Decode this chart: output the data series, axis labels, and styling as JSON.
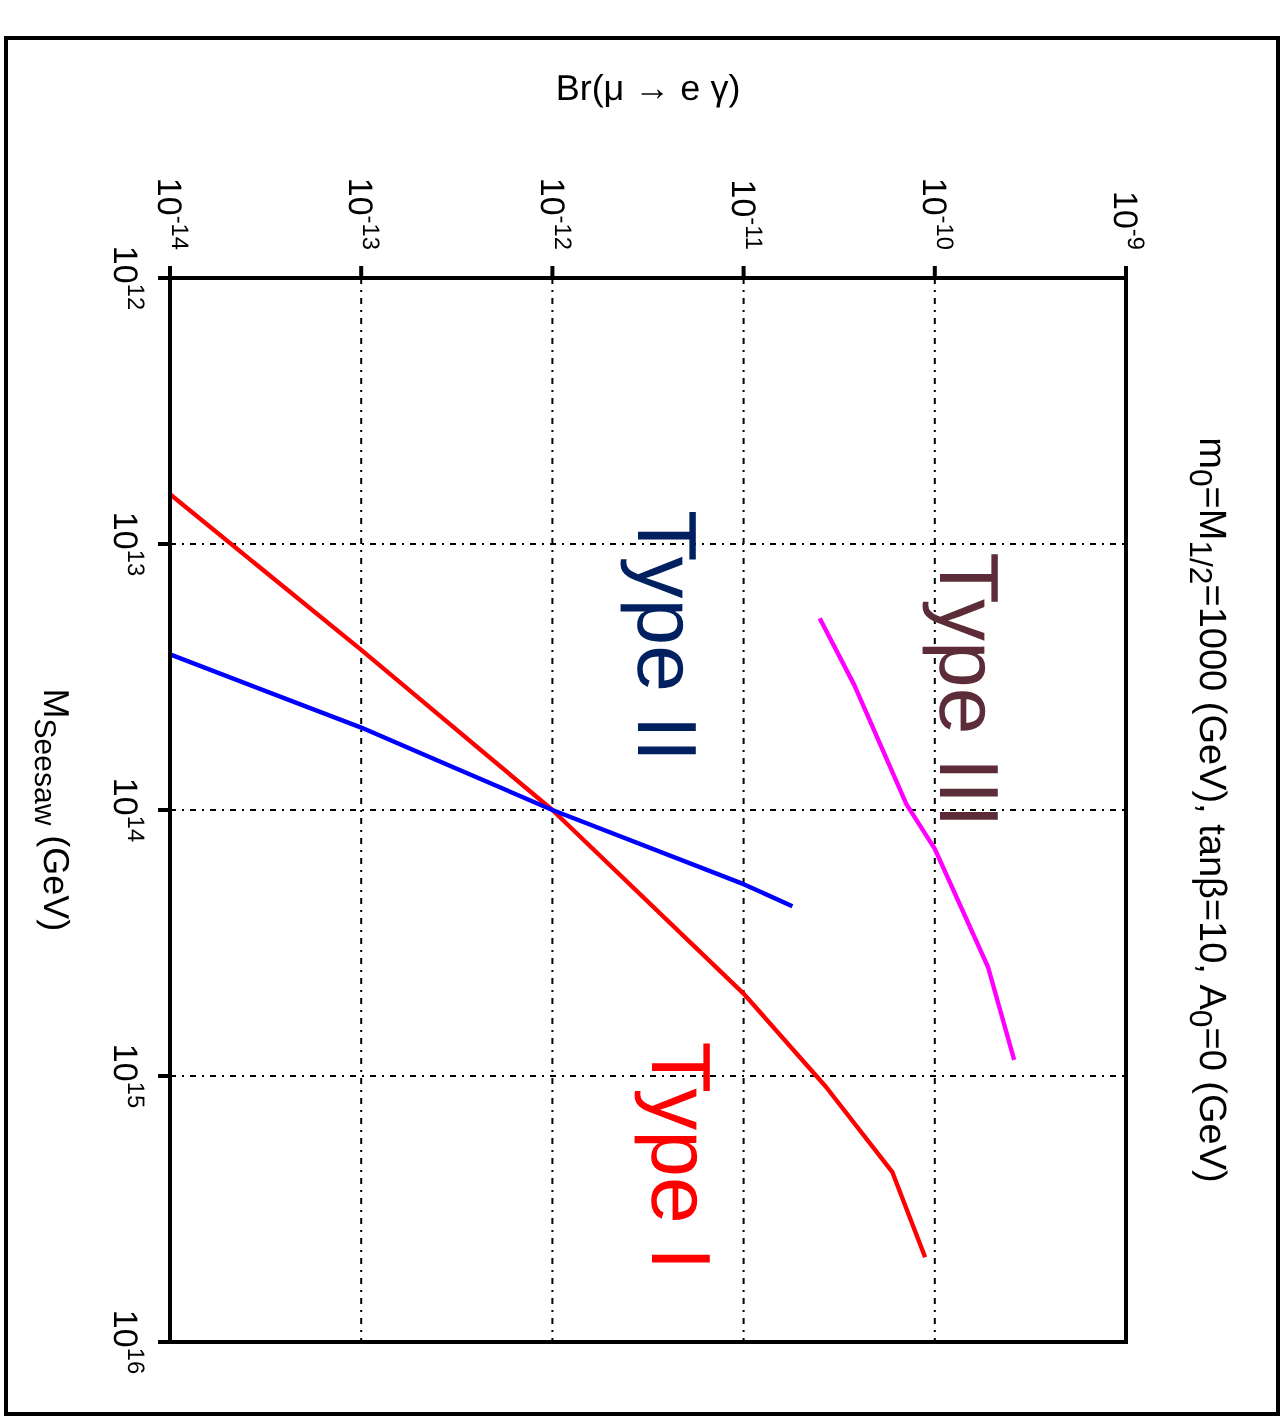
{
  "chart_data": {
    "type": "line",
    "title": "m$_{0}$=M$_{1/2}$=1000 (GeV), tanβ=10, A$_{0}$=0 (GeV)",
    "xlabel": "Br(μ →  e γ)",
    "ylabel": "M$_{Seesaw}$ (GeV)",
    "log": "xy",
    "grid": true,
    "marker": "none",
    "line_style": "solid",
    "xlim": [
      1e-14,
      1e-09
    ],
    "ylim": [
      1e+16,
      1000000000000.0
    ],
    "xticks": [
      {
        "value": 1e-14,
        "label": "10$^{-14}$"
      },
      {
        "value": 1e-13,
        "label": "10$^{-13}$"
      },
      {
        "value": 1e-12,
        "label": "10$^{-12}$"
      },
      {
        "value": 1e-11,
        "label": "10$^{-11}$"
      },
      {
        "value": 1e-10,
        "label": "10$^{-10}$"
      },
      {
        "value": 1e-09,
        "label": "10$^{-9}$"
      }
    ],
    "yticks": [
      {
        "value": 1000000000000.0,
        "label": "10$^{12}$"
      },
      {
        "value": 10000000000000.0,
        "label": "10$^{13}$"
      },
      {
        "value": 100000000000000.0,
        "label": "10$^{14}$"
      },
      {
        "value": 1000000000000000.0,
        "label": "10$^{15}$"
      },
      {
        "value": 1e+16,
        "label": "10$^{16}$"
      }
    ],
    "series": [
      {
        "name": "Type I",
        "color": "#ff0000",
        "x": [
          1e-14,
          1e-13,
          1e-12,
          1e-11,
          2.7e-11,
          6e-11,
          8.9e-11
        ],
        "values": [
          6500000000000.0,
          25000000000000.0,
          100000000000000.0,
          490000000000000.0,
          1100000000000000.0,
          2300000000000000.0,
          4800000000000000.0
        ]
      },
      {
        "name": "Type II",
        "color": "#0000ff",
        "x": [
          1e-14,
          1e-13,
          1e-12,
          1e-11,
          1.8e-11
        ],
        "values": [
          26000000000000.0,
          49000000000000.0,
          100000000000000.0,
          190000000000000.0,
          230000000000000.0
        ]
      },
      {
        "name": "Type III",
        "color": "#ff00ff",
        "x": [
          2.5e-11,
          3.8e-11,
          7.1e-11,
          1e-10,
          1.9e-10,
          2.6e-10
        ],
        "values": [
          19000000000000.0,
          34000000000000.0,
          95000000000000.0,
          140000000000000.0,
          390000000000000.0,
          870000000000000.0
        ]
      }
    ]
  }
}
